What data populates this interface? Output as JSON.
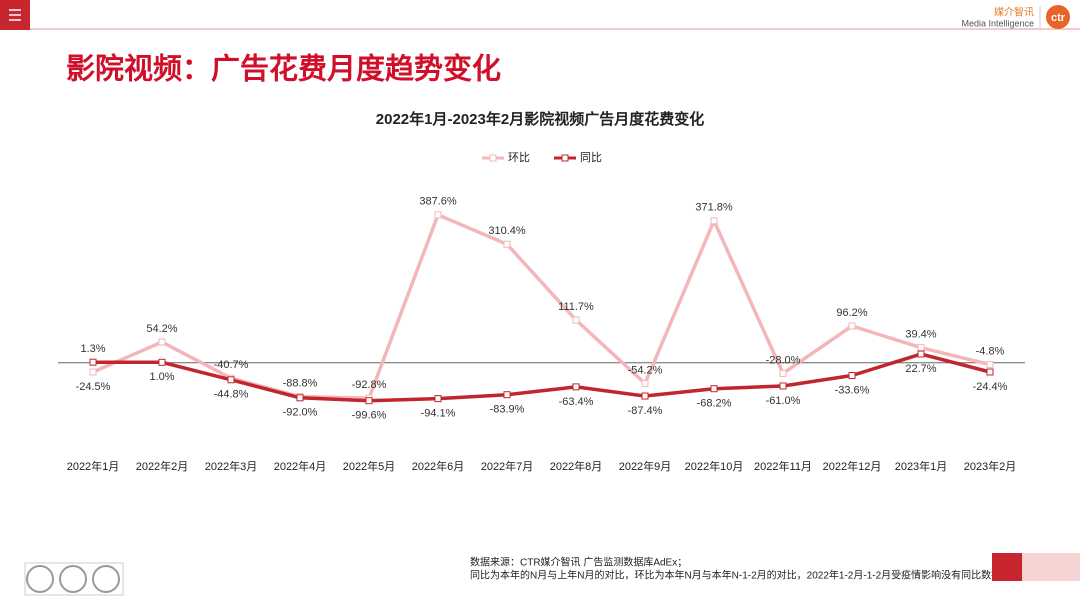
{
  "header": {
    "logo_cn": "媒介智讯",
    "logo_en": "Media Intelligence",
    "logo_mark": "ctr",
    "title": "影院视频：广告花费月度趋势变化"
  },
  "chart_data": {
    "type": "line",
    "title": "2022年1月-2023年2月影院视频广告月度花费变化",
    "categories": [
      "2022年1月",
      "2022年2月",
      "2022年3月",
      "2022年4月",
      "2022年5月",
      "2022年6月",
      "2022年7月",
      "2022年8月",
      "2022年9月",
      "2022年10月",
      "2022年11月",
      "2022年12月",
      "2023年1月",
      "2023年2月"
    ],
    "series": [
      {
        "name": "环比",
        "color": "#f4b6b8",
        "values": [
          -24.5,
          54.2,
          -40.7,
          -88.8,
          -92.8,
          387.6,
          310.4,
          111.7,
          -54.2,
          371.8,
          -28.0,
          96.2,
          39.4,
          -4.8
        ],
        "value_labels": [
          "-24.5%",
          "54.2%",
          "-40.7%",
          "-88.8%",
          "-92.8%",
          "387.6%",
          "310.4%",
          "111.7%",
          "-54.2%",
          "371.8%",
          "-28.0%",
          "96.2%",
          "39.4%",
          "-4.8%"
        ]
      },
      {
        "name": "同比",
        "color": "#c0262c",
        "values": [
          1.3,
          1.0,
          -44.8,
          -92.0,
          -99.6,
          -94.1,
          -83.9,
          -63.4,
          -87.4,
          -68.2,
          -61.0,
          -33.6,
          22.7,
          -24.4
        ],
        "value_labels": [
          "1.3%",
          "1.0%",
          "-44.8%",
          "-92.0%",
          "-99.6%",
          "-94.1%",
          "-83.9%",
          "-63.4%",
          "-87.4%",
          "-68.2%",
          "-61.0%",
          "-33.6%",
          "22.7%",
          "-24.4%"
        ]
      }
    ],
    "ylim": [
      -200,
      450
    ],
    "legend": "top"
  },
  "footer": {
    "source": "数据来源：CTR媒介智讯 广告监测数据库AdEx；",
    "note": "同比为本年的N月与上年N月的对比，环比为本年N月与本年N-1-2月的对比，2022年1-2月-1-2月受疫情影响没有同比数据"
  }
}
